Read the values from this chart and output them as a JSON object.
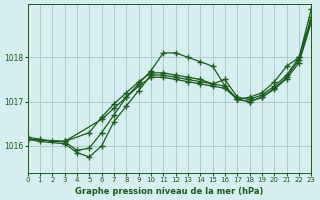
{
  "title": "Graphe pression niveau de la mer (hPa)",
  "bg_color": "#d6eef0",
  "grid_color": "#aacccc",
  "line_color": "#1a5c1a",
  "xlim": [
    0,
    23
  ],
  "ylim": [
    1015.4,
    1019.2
  ],
  "yticks": [
    1016,
    1017,
    1018
  ],
  "xticks": [
    0,
    1,
    2,
    3,
    4,
    5,
    6,
    7,
    8,
    9,
    10,
    11,
    12,
    13,
    14,
    15,
    16,
    17,
    18,
    19,
    20,
    21,
    22,
    23
  ],
  "line1": {
    "x": [
      0,
      1,
      2,
      3,
      4,
      5,
      6,
      7,
      8,
      9,
      10,
      11,
      12,
      13,
      14,
      15,
      16,
      17,
      18,
      19,
      20,
      21,
      22,
      23
    ],
    "y": [
      1016.2,
      1016.15,
      1016.1,
      1016.1,
      1015.9,
      1015.95,
      1016.3,
      1016.7,
      1017.1,
      1017.4,
      1017.7,
      1018.1,
      1018.1,
      1018.0,
      1017.9,
      1017.8,
      1017.35,
      1017.05,
      1017.1,
      1017.2,
      1017.45,
      1017.8,
      1018.0,
      1019.1
    ]
  },
  "line2": {
    "x": [
      0,
      1,
      3,
      4,
      5,
      6,
      7,
      8,
      9,
      10,
      11,
      12,
      13,
      14,
      15,
      16,
      17,
      18,
      19,
      20,
      21,
      22,
      23
    ],
    "y": [
      1016.15,
      1016.1,
      1016.05,
      1015.85,
      1015.75,
      1016.0,
      1016.55,
      1016.9,
      1017.25,
      1017.6,
      1017.6,
      1017.55,
      1017.5,
      1017.45,
      1017.4,
      1017.5,
      1017.1,
      1017.05,
      1017.15,
      1017.35,
      1017.6,
      1018.0,
      1018.9
    ]
  },
  "line3": {
    "x": [
      0,
      3,
      5,
      6,
      7,
      8,
      9,
      10,
      11,
      12,
      13,
      14,
      15,
      16,
      17,
      18,
      19,
      20,
      21,
      22,
      23
    ],
    "y": [
      1016.15,
      1016.1,
      1016.3,
      1016.65,
      1016.95,
      1017.2,
      1017.45,
      1017.65,
      1017.65,
      1017.6,
      1017.55,
      1017.5,
      1017.4,
      1017.35,
      1017.05,
      1017.0,
      1017.1,
      1017.3,
      1017.55,
      1017.95,
      1018.85
    ]
  },
  "line4": {
    "x": [
      0,
      3,
      6,
      7,
      8,
      9,
      10,
      11,
      12,
      13,
      14,
      15,
      16,
      17,
      18,
      19,
      20,
      21,
      22,
      23
    ],
    "y": [
      1016.15,
      1016.1,
      1016.6,
      1016.85,
      1017.1,
      1017.35,
      1017.55,
      1017.55,
      1017.5,
      1017.45,
      1017.4,
      1017.35,
      1017.3,
      1017.05,
      1017.0,
      1017.1,
      1017.28,
      1017.52,
      1017.88,
      1018.8
    ]
  }
}
